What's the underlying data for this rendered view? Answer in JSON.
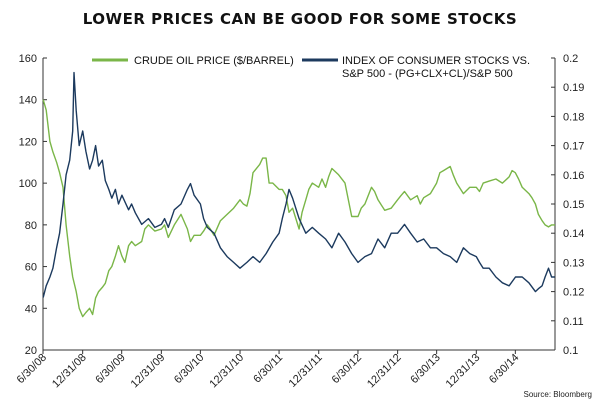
{
  "chart_data": {
    "type": "line",
    "title": "LOWER PRICES CAN BE GOOD FOR SOME STOCKS",
    "source": "Source: Bloomberg",
    "legend_position": "top",
    "grid": false,
    "x_labels": [
      "6/30/08",
      "12/31/08",
      "6/30/09",
      "12/31/09",
      "6/30/10",
      "12/31/10",
      "6/30/11",
      "12/31/11",
      "6/30/12",
      "12/31/12",
      "6/30/13",
      "12/31/13",
      "6/30/14"
    ],
    "x_range": [
      "2008-06-30",
      "2014-12-31"
    ],
    "left_axis": {
      "ylim": [
        20,
        160
      ],
      "ticks": [
        "20",
        "40",
        "60",
        "80",
        "100",
        "120",
        "140",
        "160"
      ]
    },
    "right_axis": {
      "ylim": [
        0.1,
        0.2
      ],
      "ticks": [
        "0.1",
        "0.11",
        "0.12",
        "0.13",
        "0.14",
        "0.15",
        "0.16",
        "0.17",
        "0.18",
        "0.19",
        "0.2"
      ]
    },
    "series": [
      {
        "name": "CRUDE OIL PRICE ($/BARREL)",
        "axis": "left",
        "color": "#7ab648",
        "x": [
          "2008-07-01",
          "2008-07-15",
          "2008-08-01",
          "2008-08-15",
          "2008-09-01",
          "2008-09-15",
          "2008-10-01",
          "2008-10-15",
          "2008-11-01",
          "2008-11-15",
          "2008-12-01",
          "2008-12-15",
          "2008-12-31",
          "2009-01-15",
          "2009-02-01",
          "2009-02-15",
          "2009-03-01",
          "2009-03-15",
          "2009-04-01",
          "2009-04-15",
          "2009-05-01",
          "2009-05-15",
          "2009-06-01",
          "2009-06-15",
          "2009-07-01",
          "2009-07-15",
          "2009-08-01",
          "2009-08-15",
          "2009-09-01",
          "2009-10-01",
          "2009-10-15",
          "2009-11-01",
          "2009-12-01",
          "2009-12-31",
          "2010-01-15",
          "2010-02-01",
          "2010-03-01",
          "2010-04-01",
          "2010-05-01",
          "2010-05-15",
          "2010-06-01",
          "2010-06-30",
          "2010-07-15",
          "2010-08-01",
          "2010-08-15",
          "2010-09-01",
          "2010-10-01",
          "2010-11-01",
          "2010-12-01",
          "2010-12-31",
          "2011-01-15",
          "2011-02-01",
          "2011-02-15",
          "2011-03-01",
          "2011-04-01",
          "2011-04-15",
          "2011-05-01",
          "2011-05-15",
          "2011-06-01",
          "2011-06-30",
          "2011-07-15",
          "2011-08-01",
          "2011-08-15",
          "2011-09-01",
          "2011-10-01",
          "2011-10-15",
          "2011-11-01",
          "2011-11-15",
          "2011-12-01",
          "2011-12-31",
          "2012-01-15",
          "2012-02-01",
          "2012-02-15",
          "2012-03-01",
          "2012-04-01",
          "2012-05-01",
          "2012-06-01",
          "2012-06-30",
          "2012-07-15",
          "2012-08-01",
          "2012-09-01",
          "2012-09-15",
          "2012-10-01",
          "2012-11-01",
          "2012-12-01",
          "2012-12-31",
          "2013-01-15",
          "2013-02-01",
          "2013-03-01",
          "2013-04-01",
          "2013-04-15",
          "2013-05-01",
          "2013-06-01",
          "2013-06-30",
          "2013-07-15",
          "2013-08-01",
          "2013-09-01",
          "2013-09-15",
          "2013-10-01",
          "2013-11-01",
          "2013-12-01",
          "2013-12-31",
          "2014-01-15",
          "2014-02-01",
          "2014-03-01",
          "2014-04-01",
          "2014-05-01",
          "2014-06-01",
          "2014-06-15",
          "2014-06-30",
          "2014-07-15",
          "2014-08-01",
          "2014-09-01",
          "2014-09-15",
          "2014-10-01",
          "2014-10-15",
          "2014-11-01",
          "2014-11-15",
          "2014-12-01",
          "2014-12-15",
          "2014-12-31"
        ],
        "values": [
          140,
          135,
          120,
          115,
          110,
          105,
          98,
          80,
          65,
          55,
          48,
          40,
          36,
          38,
          40,
          37,
          45,
          48,
          50,
          52,
          58,
          60,
          65,
          70,
          65,
          62,
          70,
          72,
          70,
          72,
          78,
          80,
          77,
          78,
          80,
          74,
          80,
          85,
          78,
          72,
          75,
          75,
          77,
          80,
          78,
          75,
          82,
          85,
          88,
          92,
          90,
          89,
          95,
          105,
          109,
          112,
          112,
          100,
          100,
          97,
          97,
          94,
          86,
          88,
          78,
          86,
          92,
          97,
          100,
          98,
          102,
          98,
          103,
          107,
          104,
          100,
          84,
          84,
          88,
          90,
          98,
          96,
          92,
          87,
          88,
          92,
          94,
          96,
          92,
          94,
          90,
          93,
          95,
          100,
          105,
          106,
          108,
          104,
          100,
          95,
          98,
          98,
          96,
          100,
          101,
          102,
          100,
          103,
          106,
          105,
          102,
          98,
          95,
          93,
          90,
          85,
          82,
          80,
          79,
          80,
          80
        ]
      },
      {
        "name": "INDEX OF CONSUMER STOCKS VS. S&P 500 - (PG+CLX+CL)/S&P 500",
        "axis": "right",
        "color": "#1c3a5e",
        "x": [
          "2008-07-01",
          "2008-07-15",
          "2008-08-01",
          "2008-08-15",
          "2008-09-01",
          "2008-09-15",
          "2008-10-01",
          "2008-10-15",
          "2008-11-01",
          "2008-11-15",
          "2008-11-21",
          "2008-12-01",
          "2008-12-15",
          "2008-12-31",
          "2009-01-15",
          "2009-02-01",
          "2009-02-15",
          "2009-03-01",
          "2009-03-15",
          "2009-04-01",
          "2009-04-15",
          "2009-05-01",
          "2009-05-15",
          "2009-06-01",
          "2009-06-15",
          "2009-07-01",
          "2009-08-01",
          "2009-08-15",
          "2009-09-01",
          "2009-10-01",
          "2009-11-01",
          "2009-12-01",
          "2009-12-31",
          "2010-01-15",
          "2010-02-01",
          "2010-03-01",
          "2010-04-01",
          "2010-05-01",
          "2010-05-15",
          "2010-06-01",
          "2010-06-30",
          "2010-07-15",
          "2010-08-01",
          "2010-09-01",
          "2010-10-01",
          "2010-11-01",
          "2010-12-01",
          "2010-12-31",
          "2011-02-01",
          "2011-03-01",
          "2011-04-01",
          "2011-05-01",
          "2011-06-01",
          "2011-06-30",
          "2011-07-15",
          "2011-08-01",
          "2011-08-15",
          "2011-09-01",
          "2011-10-01",
          "2011-11-01",
          "2011-12-01",
          "2011-12-31",
          "2012-02-01",
          "2012-03-01",
          "2012-04-01",
          "2012-05-01",
          "2012-06-01",
          "2012-06-30",
          "2012-08-01",
          "2012-09-01",
          "2012-10-01",
          "2012-11-01",
          "2012-12-01",
          "2012-12-31",
          "2013-02-01",
          "2013-03-01",
          "2013-04-01",
          "2013-05-01",
          "2013-06-01",
          "2013-06-30",
          "2013-08-01",
          "2013-09-01",
          "2013-10-01",
          "2013-11-01",
          "2013-12-01",
          "2013-12-31",
          "2014-01-15",
          "2014-02-01",
          "2014-03-01",
          "2014-04-01",
          "2014-05-01",
          "2014-06-01",
          "2014-07-01",
          "2014-08-01",
          "2014-09-01",
          "2014-10-01",
          "2014-10-15",
          "2014-11-01",
          "2014-11-15",
          "2014-12-01",
          "2014-12-15",
          "2014-12-31"
        ],
        "values": [
          0.118,
          0.122,
          0.125,
          0.128,
          0.135,
          0.14,
          0.15,
          0.16,
          0.165,
          0.175,
          0.195,
          0.182,
          0.17,
          0.175,
          0.168,
          0.162,
          0.165,
          0.17,
          0.163,
          0.165,
          0.158,
          0.155,
          0.152,
          0.155,
          0.15,
          0.153,
          0.148,
          0.15,
          0.147,
          0.143,
          0.145,
          0.142,
          0.143,
          0.145,
          0.142,
          0.148,
          0.15,
          0.155,
          0.157,
          0.153,
          0.15,
          0.145,
          0.142,
          0.14,
          0.135,
          0.132,
          0.13,
          0.128,
          0.13,
          0.132,
          0.13,
          0.133,
          0.137,
          0.14,
          0.145,
          0.15,
          0.155,
          0.152,
          0.145,
          0.14,
          0.142,
          0.14,
          0.138,
          0.135,
          0.14,
          0.137,
          0.133,
          0.13,
          0.132,
          0.133,
          0.138,
          0.135,
          0.14,
          0.14,
          0.143,
          0.14,
          0.137,
          0.138,
          0.135,
          0.135,
          0.133,
          0.132,
          0.13,
          0.135,
          0.133,
          0.132,
          0.13,
          0.128,
          0.128,
          0.125,
          0.123,
          0.122,
          0.125,
          0.125,
          0.123,
          0.12,
          0.121,
          0.122,
          0.125,
          0.128,
          0.125,
          0.125
        ]
      }
    ]
  }
}
